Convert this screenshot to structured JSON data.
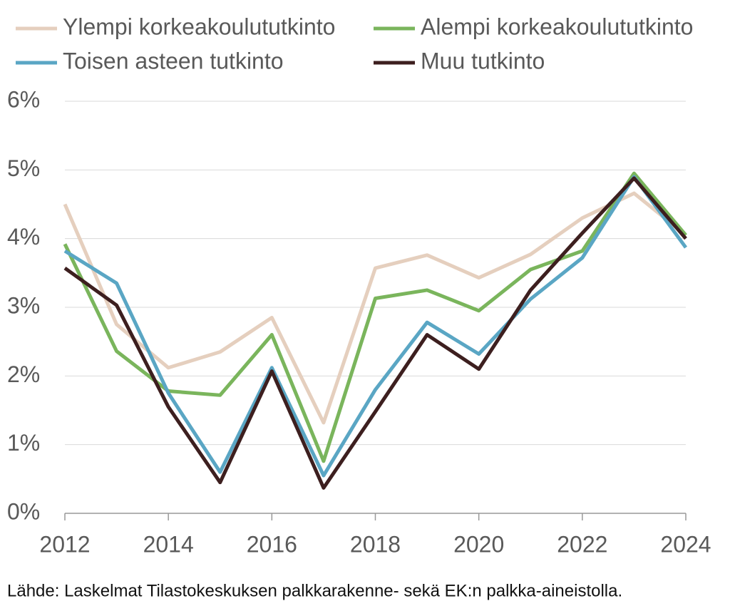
{
  "chart_data": {
    "type": "line",
    "x": [
      2012,
      2013,
      2014,
      2015,
      2016,
      2017,
      2018,
      2019,
      2020,
      2021,
      2022,
      2023,
      2024
    ],
    "series": [
      {
        "name": "Ylempi korkeakoulututkinto",
        "color": "#e5cfbe",
        "values": [
          4.5,
          2.75,
          2.12,
          2.35,
          2.85,
          1.32,
          3.57,
          3.76,
          3.43,
          3.77,
          4.3,
          4.66,
          4.05
        ]
      },
      {
        "name": "Alempi korkeakoulututkinto",
        "color": "#7ab55c",
        "values": [
          3.92,
          2.36,
          1.78,
          1.72,
          2.6,
          0.76,
          3.13,
          3.25,
          2.95,
          3.55,
          3.82,
          4.95,
          4.05
        ]
      },
      {
        "name": "Toisen asteen tutkinto",
        "color": "#5aa6c4",
        "values": [
          3.82,
          3.35,
          1.75,
          0.6,
          2.12,
          0.55,
          1.8,
          2.78,
          2.32,
          3.12,
          3.72,
          4.9,
          3.87
        ]
      },
      {
        "name": "Muu tutkinto",
        "color": "#3d1f1f",
        "values": [
          3.57,
          3.03,
          1.55,
          0.45,
          2.07,
          0.37,
          1.48,
          2.6,
          2.1,
          3.25,
          4.08,
          4.88,
          4.0
        ]
      }
    ],
    "xlim": [
      2012,
      2024
    ],
    "xticks": [
      2012,
      2014,
      2016,
      2018,
      2020,
      2022,
      2024
    ],
    "ylim": [
      0,
      6
    ],
    "yticks": [
      {
        "value": 0,
        "label": "0%"
      },
      {
        "value": 1,
        "label": "1%"
      },
      {
        "value": 2,
        "label": "2%"
      },
      {
        "value": 3,
        "label": "3%"
      },
      {
        "value": 4,
        "label": "4%"
      },
      {
        "value": 5,
        "label": "5%"
      },
      {
        "value": 6,
        "label": "6%"
      }
    ],
    "grid": true,
    "legend": "top",
    "source": "Lähde: Laskelmat Tilastokeskuksen palkkarakenne- sekä EK:n palkka-aineistolla."
  }
}
